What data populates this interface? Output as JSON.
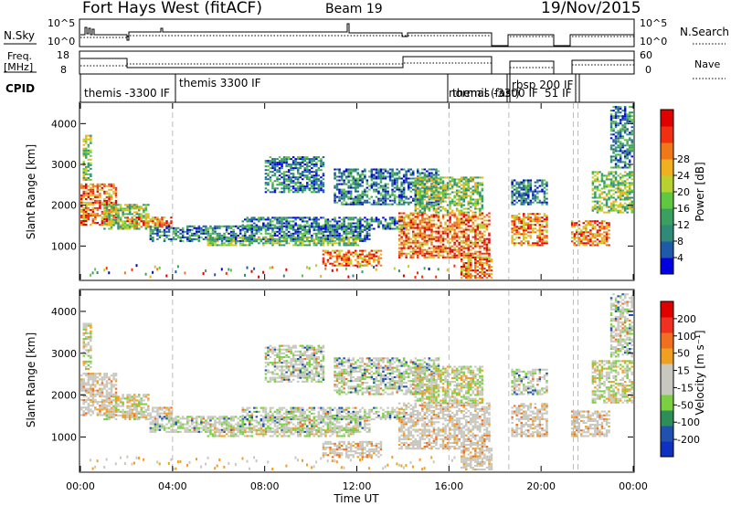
{
  "header": {
    "station": "Fort Hays West (fitACF)",
    "beam": "Beam 19",
    "date": "19/Nov/2015"
  },
  "top_panels": {
    "nsky_label": "N.Sky",
    "nsky_ticks": [
      "10^5",
      "10^0"
    ],
    "nsearch_label": "N.Search",
    "nsearch_ticks": [
      "10^5",
      "10^0"
    ],
    "freq_label_1": "Freq.",
    "freq_label_2": "[MHz]",
    "freq_ticks": [
      "18",
      "8"
    ],
    "nave_label": "Nave",
    "nave_ticks": [
      "60",
      "0"
    ],
    "cpid_label": "CPID",
    "cpid_entries": [
      {
        "label": "themis -3300 IF",
        "start": 0.0
      },
      {
        "label": "themis 3300 IF",
        "start": 4.0
      },
      {
        "label": "normal (fast)",
        "start": 16.0
      },
      {
        "label": "themis -3300 IF",
        "start": 16.1
      },
      {
        "label": "normal (fast)",
        "start": 18.6
      },
      {
        "label": "rbsp 200 IF",
        "start": 18.7
      },
      {
        "label": "51 IF",
        "start": 21.4
      }
    ],
    "mode_changes": [
      4.0,
      16.0,
      18.6,
      21.4,
      21.6
    ]
  },
  "chart_data": [
    {
      "type": "heatmap",
      "name": "power",
      "ylabel": "Slant Range [km]",
      "ylim": [
        180,
        4500
      ],
      "yticks": [
        1000,
        2000,
        3000,
        4000
      ],
      "xlim": [
        0,
        24
      ],
      "xticks": [
        "00:00",
        "04:00",
        "08:00",
        "12:00",
        "16:00",
        "20:00",
        "00:00"
      ],
      "colorbar_label": "Power [dB]",
      "colorbar_ticks": [
        "4",
        "8",
        "12",
        "16",
        "20",
        "24",
        "28"
      ],
      "colorbar_colors": [
        "#0000e0",
        "#1e5aa8",
        "#2f8a78",
        "#3aa060",
        "#60c840",
        "#b8d030",
        "#f0b020",
        "#f07818",
        "#f03010",
        "#e00000"
      ],
      "data_gaps": [
        [
          17.9,
          18.6
        ],
        [
          20.3,
          21.2
        ]
      ]
    },
    {
      "type": "heatmap",
      "name": "velocity",
      "ylabel": "Slant Range [km]",
      "ylim": [
        180,
        4500
      ],
      "yticks": [
        1000,
        2000,
        3000,
        4000
      ],
      "xlim": [
        0,
        24
      ],
      "xticks": [
        "00:00",
        "04:00",
        "08:00",
        "12:00",
        "16:00",
        "20:00",
        "00:00"
      ],
      "xlabel": "Time UT",
      "colorbar_label": "Velocity [m s⁻¹]",
      "colorbar_ticks": [
        "200",
        "100",
        "50",
        "15",
        "-15",
        "-50",
        "-100",
        "-200"
      ],
      "colorbar_colors": [
        "#1030c0",
        "#2050b0",
        "#2e8e58",
        "#7ad040",
        "#c8c8c0",
        "#c8c8c0",
        "#f0a020",
        "#f07020",
        "#f03020",
        "#e00000"
      ],
      "data_gaps": [
        [
          17.9,
          18.6
        ],
        [
          20.3,
          21.2
        ]
      ]
    }
  ]
}
